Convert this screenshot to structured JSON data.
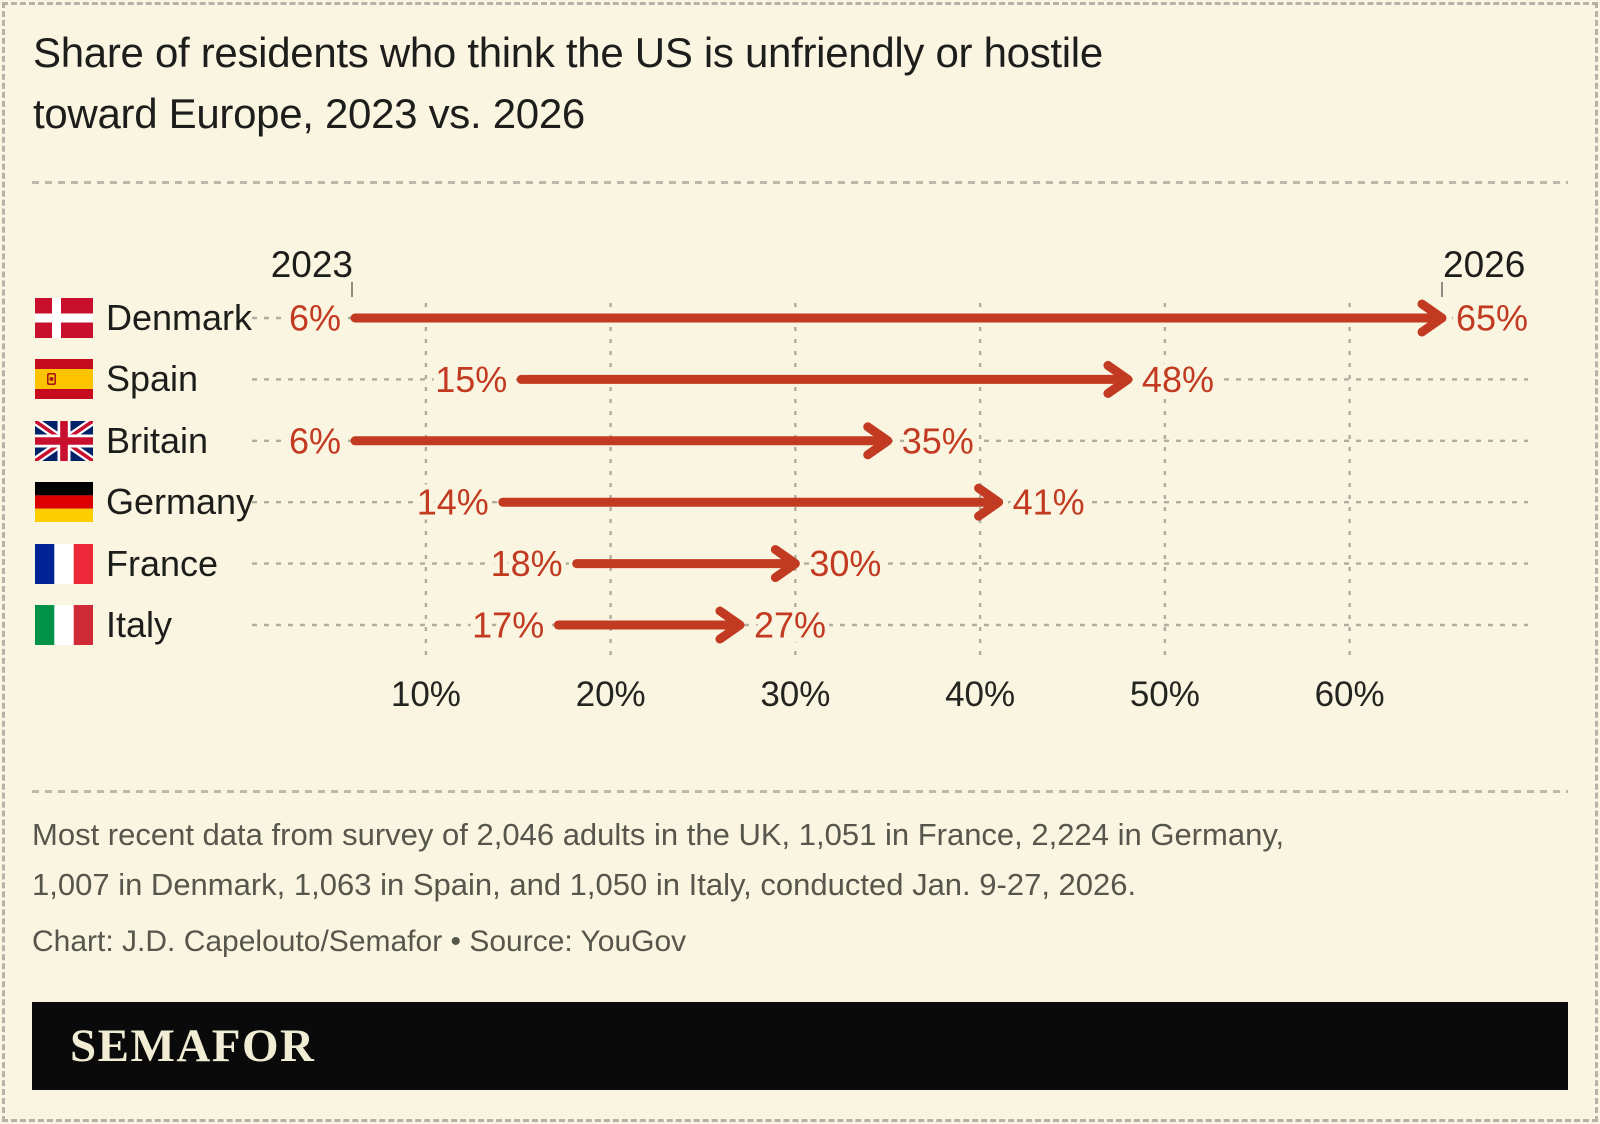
{
  "title": {
    "lines": [
      "Share of residents who think the US is unfriendly or hostile",
      "toward Europe, 2023 vs. 2026"
    ]
  },
  "colors": {
    "background": "#faf5e0",
    "arrow_red": "#c13a21",
    "text_dark": "#1d1d1b",
    "text_gray": "#56564d",
    "grid_gray": "#b0ac9e",
    "tick_gray": "#8f8b80",
    "logo_bar_black": "#0a0a0a",
    "logo_text_cream": "#f1ecd4"
  },
  "chart_data": {
    "type": "arrow",
    "start_year_label": "2023",
    "end_year_label": "2026",
    "categories": [
      "Denmark",
      "Spain",
      "Britain",
      "Germany",
      "France",
      "Italy"
    ],
    "series": [
      {
        "name": "2023",
        "values": [
          6,
          15,
          6,
          14,
          18,
          17
        ]
      },
      {
        "name": "2026",
        "values": [
          65,
          48,
          35,
          41,
          30,
          27
        ]
      }
    ],
    "countries": [
      {
        "name": "Denmark",
        "flag": "dk",
        "start": 6,
        "end": 65,
        "start_label": "6%",
        "end_label": "65%"
      },
      {
        "name": "Spain",
        "flag": "es",
        "start": 15,
        "end": 48,
        "start_label": "15%",
        "end_label": "48%"
      },
      {
        "name": "Britain",
        "flag": "gb",
        "start": 6,
        "end": 35,
        "start_label": "6%",
        "end_label": "35%"
      },
      {
        "name": "Germany",
        "flag": "de",
        "start": 14,
        "end": 41,
        "start_label": "14%",
        "end_label": "41%"
      },
      {
        "name": "France",
        "flag": "fr",
        "start": 18,
        "end": 30,
        "start_label": "18%",
        "end_label": "30%"
      },
      {
        "name": "Italy",
        "flag": "it",
        "start": 17,
        "end": 27,
        "start_label": "17%",
        "end_label": "27%"
      }
    ],
    "x_ticks": [
      "10%",
      "20%",
      "30%",
      "40%",
      "50%",
      "60%"
    ],
    "x_tick_values": [
      10,
      20,
      30,
      40,
      50,
      60
    ],
    "xlim": [
      6,
      65
    ],
    "xlabel": "",
    "ylabel": "",
    "grid": "vertical-dashed",
    "unit": "%"
  },
  "footnote": {
    "lines": [
      "Most recent data from survey of 2,046 adults in the UK, 1,051 in France, 2,224 in Germany,",
      "1,007 in Denmark, 1,063 in Spain, and 1,050 in Italy, conducted Jan. 9-27, 2026."
    ]
  },
  "credit": "Chart: J.D. Capelouto/Semafor • Source: YouGov",
  "logo": {
    "text": "SEMAFOR"
  }
}
